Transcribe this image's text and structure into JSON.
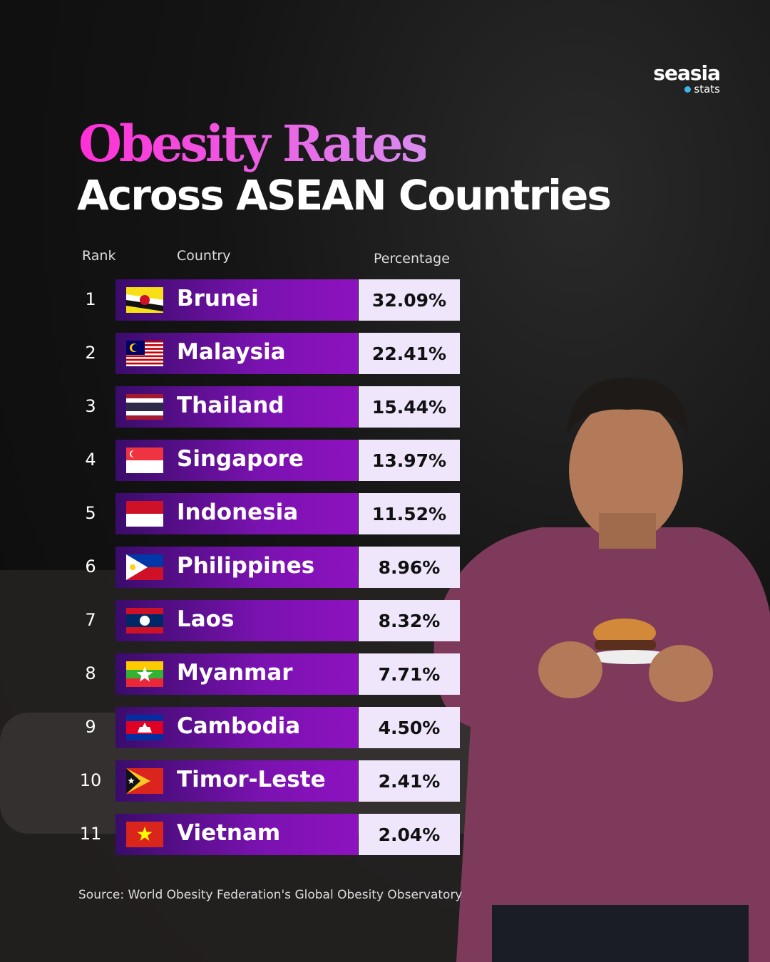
{
  "brand": {
    "name": "seasia",
    "sub": "stats"
  },
  "title": {
    "line1": "Obesity Rates",
    "line2": "Across ASEAN Countries"
  },
  "table": {
    "headers": [
      "Rank",
      "Country",
      "Percentage"
    ],
    "rows": [
      [
        "1",
        "Brunei",
        "32.09%"
      ],
      [
        "2",
        "Malaysia",
        "22.41%"
      ],
      [
        "3",
        "Thailand",
        "15.44%"
      ],
      [
        "4",
        "Singapore",
        "13.97%"
      ],
      [
        "5",
        "Indonesia",
        "11.52%"
      ],
      [
        "6",
        "Philippines",
        "8.96%"
      ],
      [
        "7",
        "Laos",
        "8.32%"
      ],
      [
        "8",
        "Myanmar",
        "7.71%"
      ],
      [
        "9",
        "Cambodia",
        "4.50%"
      ],
      [
        "10",
        "Timor-Leste",
        "2.41%"
      ],
      [
        "11",
        "Vietnam",
        "2.04%"
      ]
    ]
  },
  "source": "Source: World Obesity Federation's Global Obesity Observatory"
}
